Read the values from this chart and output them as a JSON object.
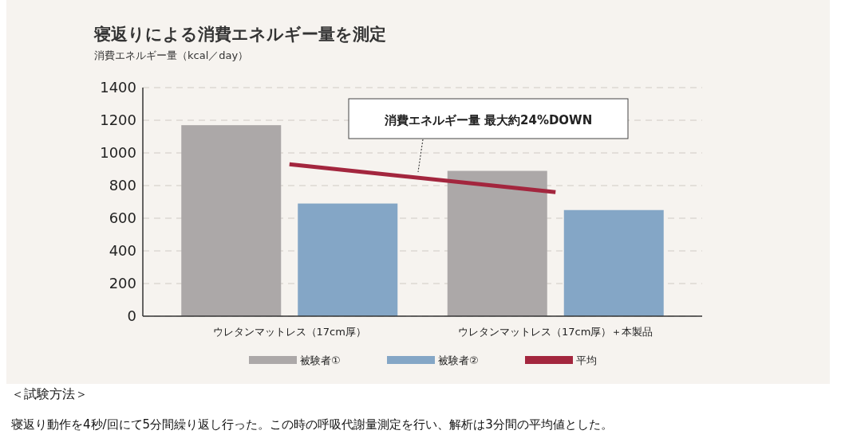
{
  "chart_data": {
    "type": "bar",
    "title": "寝返りによる消費エネルギー量を測定",
    "ylabel": "消費エネルギー量（kcal／day）",
    "categories": [
      "ウレタンマットレス（17cm厚）",
      "ウレタンマットレス（17cm厚）＋本製品"
    ],
    "series": [
      {
        "name": "被験者①",
        "color": "#aca8a8",
        "values": [
          1170,
          890
        ]
      },
      {
        "name": "被験者②",
        "color": "#84a6c6",
        "values": [
          690,
          650
        ]
      },
      {
        "name": "平均",
        "color": "#a3263e",
        "type": "line",
        "values": [
          930,
          760
        ]
      }
    ],
    "ylim": [
      0,
      1400
    ],
    "yticks": [
      0,
      200,
      400,
      600,
      800,
      1000,
      1200,
      1400
    ],
    "grid": "y",
    "legend": "bottom",
    "annotations": [
      "消費エネルギー量 最大約24%DOWN",
      "＜試験方法＞",
      "寝返り動作を4秒/回にて5分間繰り返し行った。この時の呼吸代謝量測定を行い、解析は3分間の平均値とした。"
    ]
  }
}
